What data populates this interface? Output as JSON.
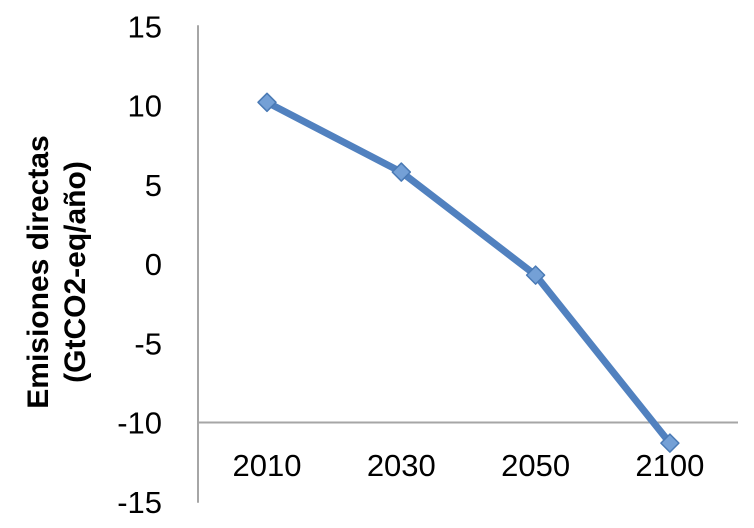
{
  "chart_data": {
    "type": "line",
    "title": "",
    "categories": [
      "2010",
      "2030",
      "2050",
      "2100"
    ],
    "series": [
      {
        "name": "Emisiones directas",
        "values": [
          10.2,
          5.8,
          -0.7,
          -11.3
        ]
      }
    ],
    "ylabel_line1": "Emisiones directas",
    "ylabel_line2": "(GtCO2-eq/año)",
    "yticks": [
      15,
      10,
      5,
      0,
      -5,
      -10,
      -15
    ],
    "ylim": [
      -15,
      15
    ],
    "x_axis_cross_value": -10,
    "grid": "off",
    "legend": "none",
    "line_color": "#5181bf",
    "marker_fill_color": "#74a0d6",
    "marker_edge_color": "#4a7ab5",
    "axis_color": "#a6a6a6",
    "text_color": "#000000"
  }
}
